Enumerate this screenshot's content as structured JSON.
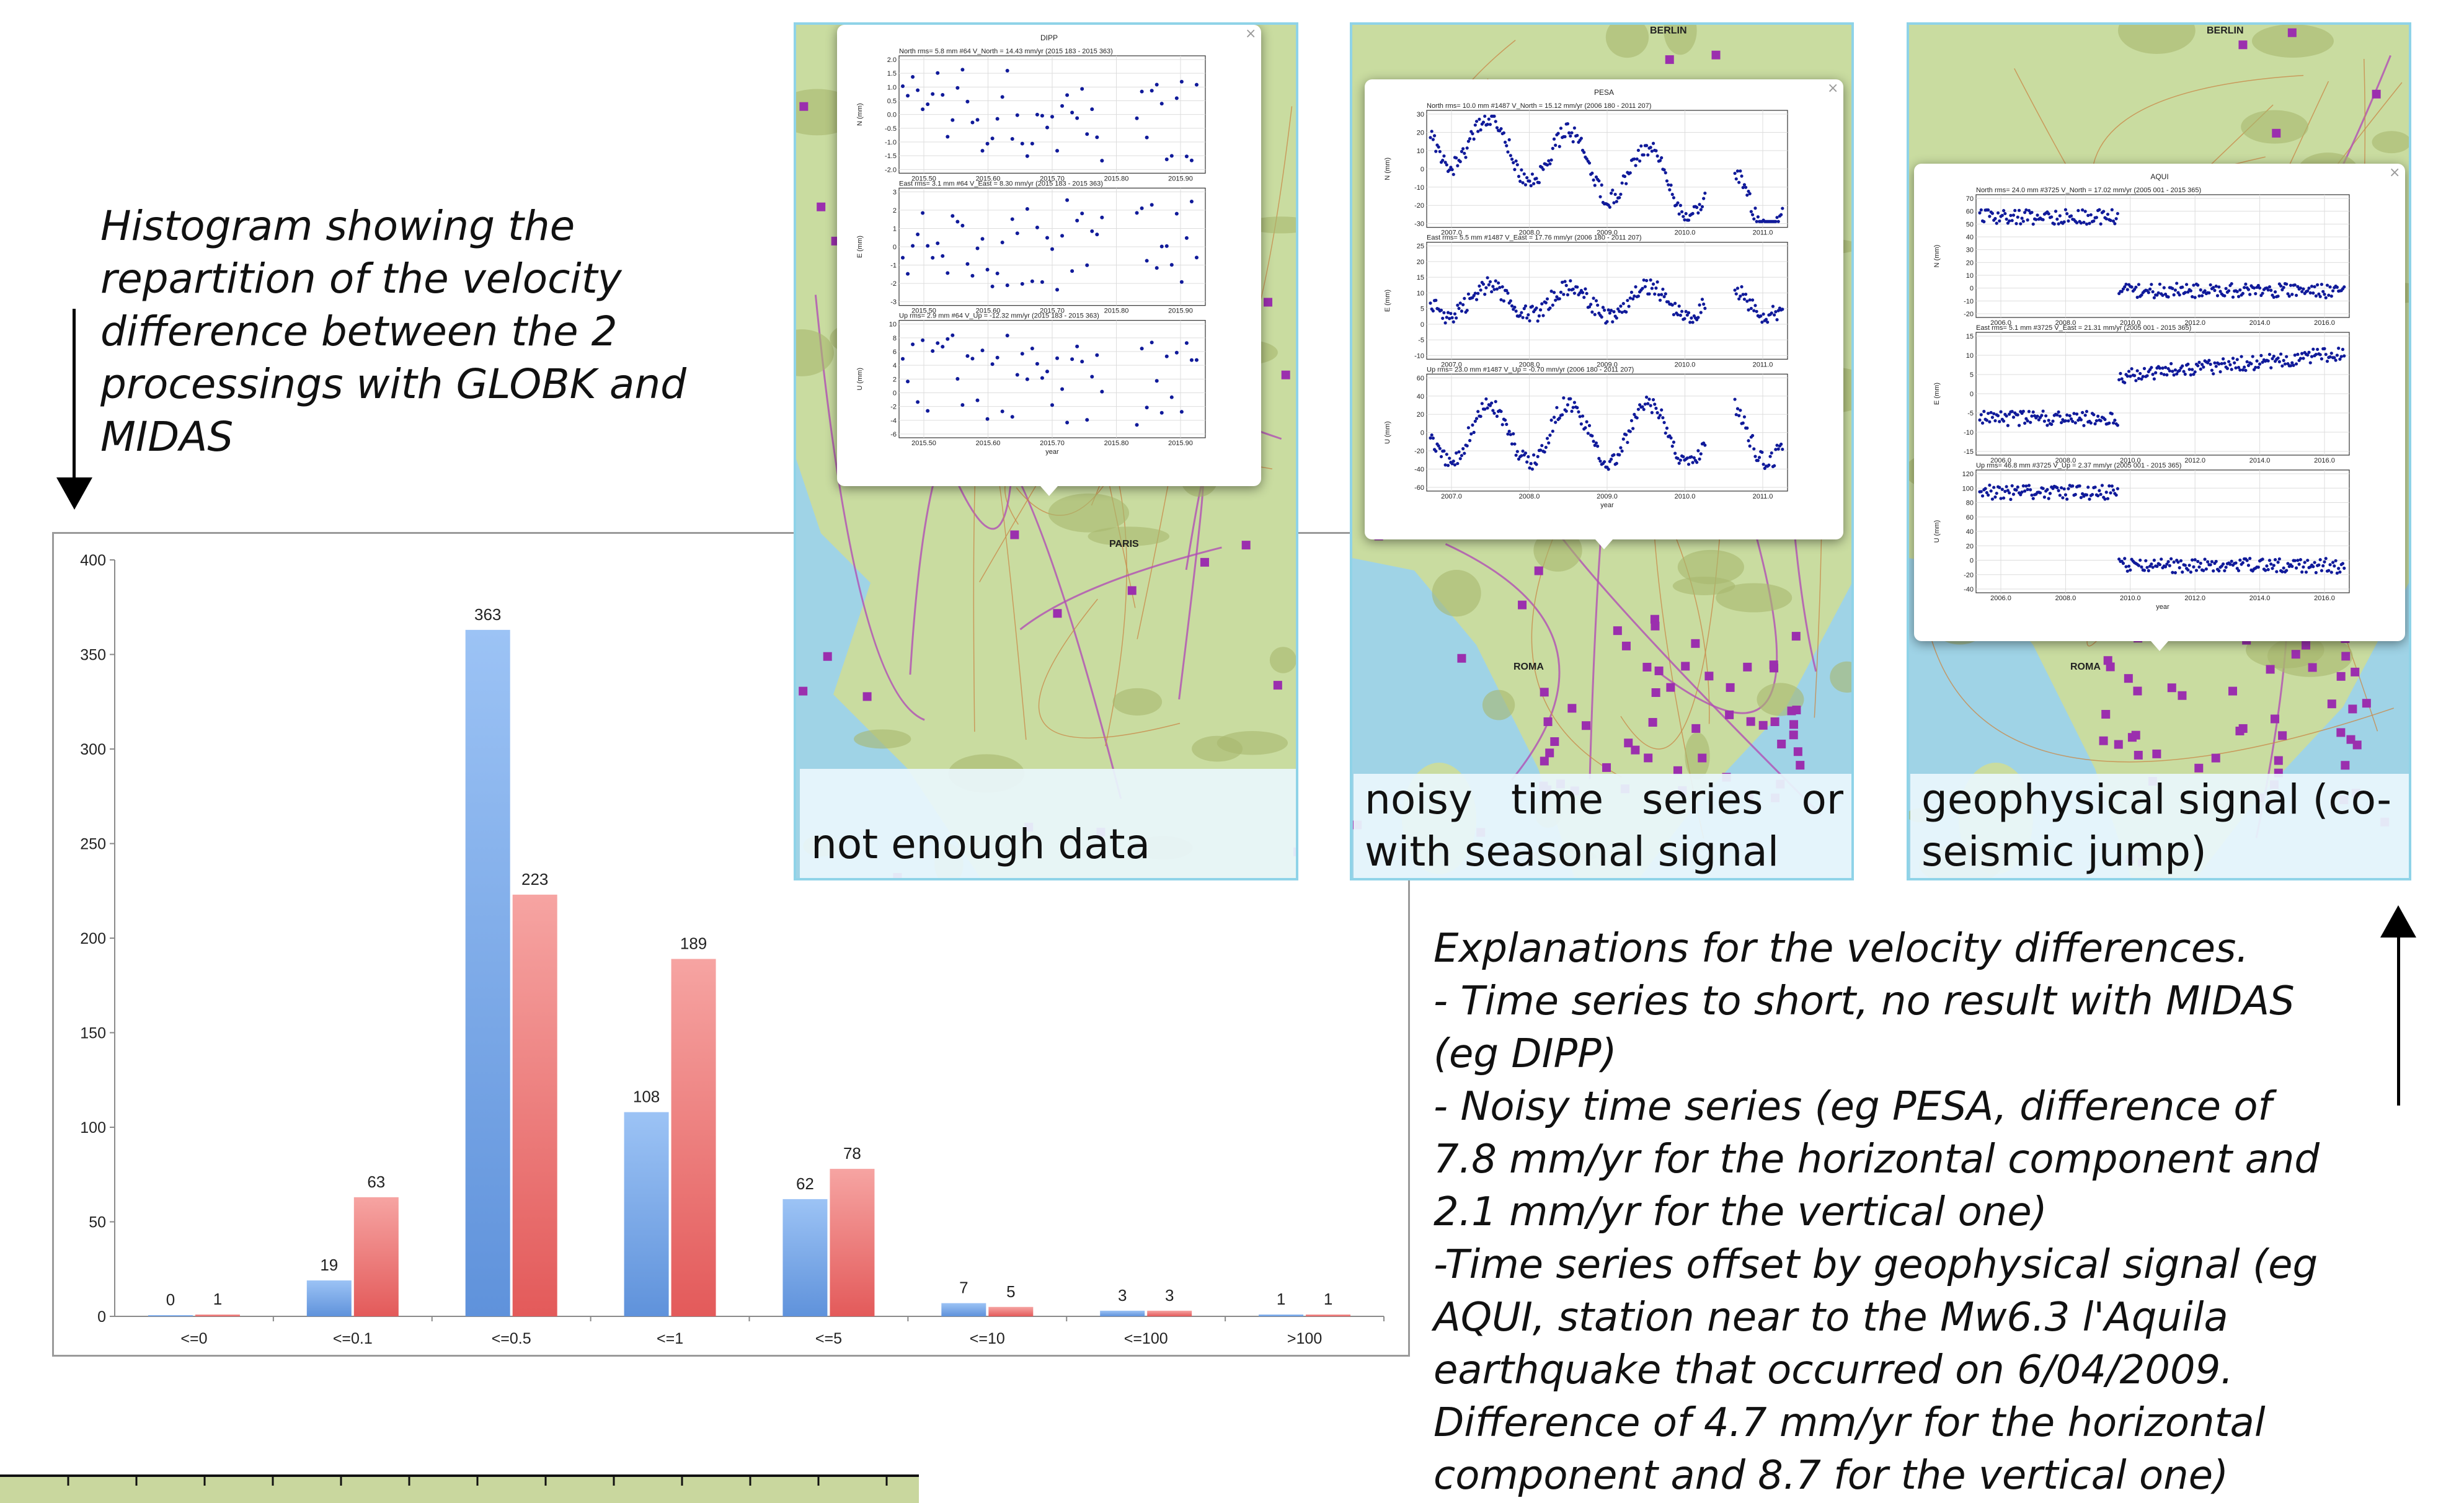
{
  "captions": {
    "left": [
      "Histogram showing the",
      "repartition of the velocity",
      "difference between the 2",
      "processings with GLOBK and",
      "MIDAS"
    ],
    "right": [
      "Explanations for the velocity differences.",
      "- Time series to short, no result with MIDAS",
      "(eg DIPP)",
      "- Noisy time series (eg PESA, difference of",
      "7.8 mm/yr for the horizontal component and",
      "2.1 mm/yr for the vertical one)",
      "-Time series offset by geophysical signal (eg",
      "AQUI, station near to the Mw6.3 l'Aquila",
      "earthquake that occurred on 6/04/2009.",
      "Difference of 4.7 mm/yr for the horizontal",
      "component and 8.7 for the vertical one)"
    ]
  },
  "colors": {
    "series_blue": "#5f92db",
    "series_red": "#e35a5a",
    "sea": "#9fd3e6",
    "land": "#c9dca0",
    "station": "#9b2fae",
    "plot_point": "#101a9a"
  },
  "chart_data": {
    "type": "bar",
    "title": "",
    "xlabel": "",
    "ylabel": "",
    "categories": [
      "<=0",
      "<=0.1",
      "<=0.5",
      "<=1",
      "<=5",
      "<=10",
      "<=100",
      ">100"
    ],
    "series": [
      {
        "values": [
          0,
          19,
          363,
          108,
          62,
          7,
          3,
          1
        ]
      },
      {
        "values": [
          1,
          63,
          223,
          189,
          78,
          5,
          3,
          1
        ]
      }
    ],
    "ylim": [
      0,
      400
    ],
    "yticks": [
      0,
      50,
      100,
      150,
      200,
      250,
      300,
      350,
      400
    ],
    "grid": false,
    "legend": "none"
  },
  "panels": [
    {
      "station": "DIPP",
      "label": "not enough data",
      "subplots": [
        {
          "header": "North      rms=   5.8 mm  #64      V_North = 14.43 mm/yr (2015 183 - 2015 363)",
          "ylabel": "N (mm)",
          "yticks": [
            "2.0",
            "1.5",
            "1.0",
            "0.5",
            "0.0",
            "-0.5",
            "-1.0",
            "-1.5",
            "-2.0"
          ],
          "xticks": [
            "2015.50",
            "2015.60",
            "2015.70",
            "2015.80",
            "2015.90"
          ]
        },
        {
          "header": "East      rms=  3.1 mm  #64      V_East = 8.30 mm/yr (2015 183 - 2015 363)",
          "ylabel": "E (mm)",
          "yticks": [
            "3",
            "2",
            "1",
            "0",
            "-1",
            "-2",
            "-3"
          ],
          "xticks": [
            "2015.50",
            "2015.60",
            "2015.70",
            "2015.80",
            "2015.90"
          ]
        },
        {
          "header": "Up      rms=  2.9 mm  #64      V_Up = -12.32 mm/yr (2015 183 - 2015 363)",
          "ylabel": "U (mm)",
          "yticks": [
            "10",
            "8",
            "6",
            "4",
            "2",
            "0",
            "-2",
            "-4",
            "-6"
          ],
          "xticks": [
            "2015.50",
            "2015.60",
            "2015.70",
            "2015.80",
            "2015.90"
          ]
        }
      ],
      "xlabel": "year",
      "map_labels": [
        "PARIS"
      ]
    },
    {
      "station": "PESA",
      "label": "noisy time series or with seasonal signal",
      "subplots": [
        {
          "header": "North      rms= 10.0 mm  #1487     V_North = 15.12 mm/yr (2006 180 - 2011 207)",
          "ylabel": "N (mm)",
          "yticks": [
            "30",
            "20",
            "10",
            "0",
            "-10",
            "-20",
            "-30"
          ],
          "xticks": [
            "2007.0",
            "2008.0",
            "2009.0",
            "2010.0",
            "2011.0"
          ]
        },
        {
          "header": "East      rms=  5.5 mm  #1487     V_East = 17.76 mm/yr (2006 180 - 2011 207)",
          "ylabel": "E (mm)",
          "yticks": [
            "25",
            "20",
            "15",
            "10",
            "5",
            "0",
            "-5",
            "-10"
          ],
          "xticks": [
            "2007.0",
            "2008.0",
            "2009.0",
            "2010.0",
            "2011.0"
          ]
        },
        {
          "header": "Up      rms= 23.0 mm  #1487     V_Up = -0.70 mm/yr (2006 180 - 2011 207)",
          "ylabel": "U (mm)",
          "yticks": [
            "60",
            "40",
            "20",
            "0",
            "-20",
            "-40",
            "-60"
          ],
          "xticks": [
            "2007.0",
            "2008.0",
            "2009.0",
            "2010.0",
            "2011.0"
          ]
        }
      ],
      "xlabel": "year",
      "map_labels": [
        "BERLIN",
        "ROMA"
      ]
    },
    {
      "station": "AQUI",
      "label": "geophysical signal (co-seismic jump)",
      "subplots": [
        {
          "header": "North      rms= 24.0 mm  #3725     V_North = 17.02 mm/yr (2005 001 - 2015 365)",
          "ylabel": "N (mm)",
          "yticks": [
            "70",
            "60",
            "50",
            "40",
            "30",
            "20",
            "10",
            "0",
            "-10",
            "-20"
          ],
          "xticks": [
            "2006.0",
            "2008.0",
            "2010.0",
            "2012.0",
            "2014.0",
            "2016.0"
          ]
        },
        {
          "header": "East      rms=  5.1 mm  #3725     V_East = 21.31 mm/yr (2005 001 - 2015 365)",
          "ylabel": "E (mm)",
          "yticks": [
            "15",
            "10",
            "5",
            "0",
            "-5",
            "-10",
            "-15"
          ],
          "xticks": [
            "2006.0",
            "2008.0",
            "2010.0",
            "2012.0",
            "2014.0",
            "2016.0"
          ]
        },
        {
          "header": "Up      rms= 46.8 mm  #3725     V_Up = 2.37 mm/yr (2005 001 - 2015 365)",
          "ylabel": "U (mm)",
          "yticks": [
            "120",
            "100",
            "80",
            "60",
            "40",
            "20",
            "0",
            "-20",
            "-40"
          ],
          "xticks": [
            "2006.0",
            "2008.0",
            "2010.0",
            "2012.0",
            "2014.0",
            "2016.0"
          ]
        }
      ],
      "xlabel": "year",
      "map_labels": [
        "BERLIN",
        "ROMA"
      ]
    }
  ]
}
